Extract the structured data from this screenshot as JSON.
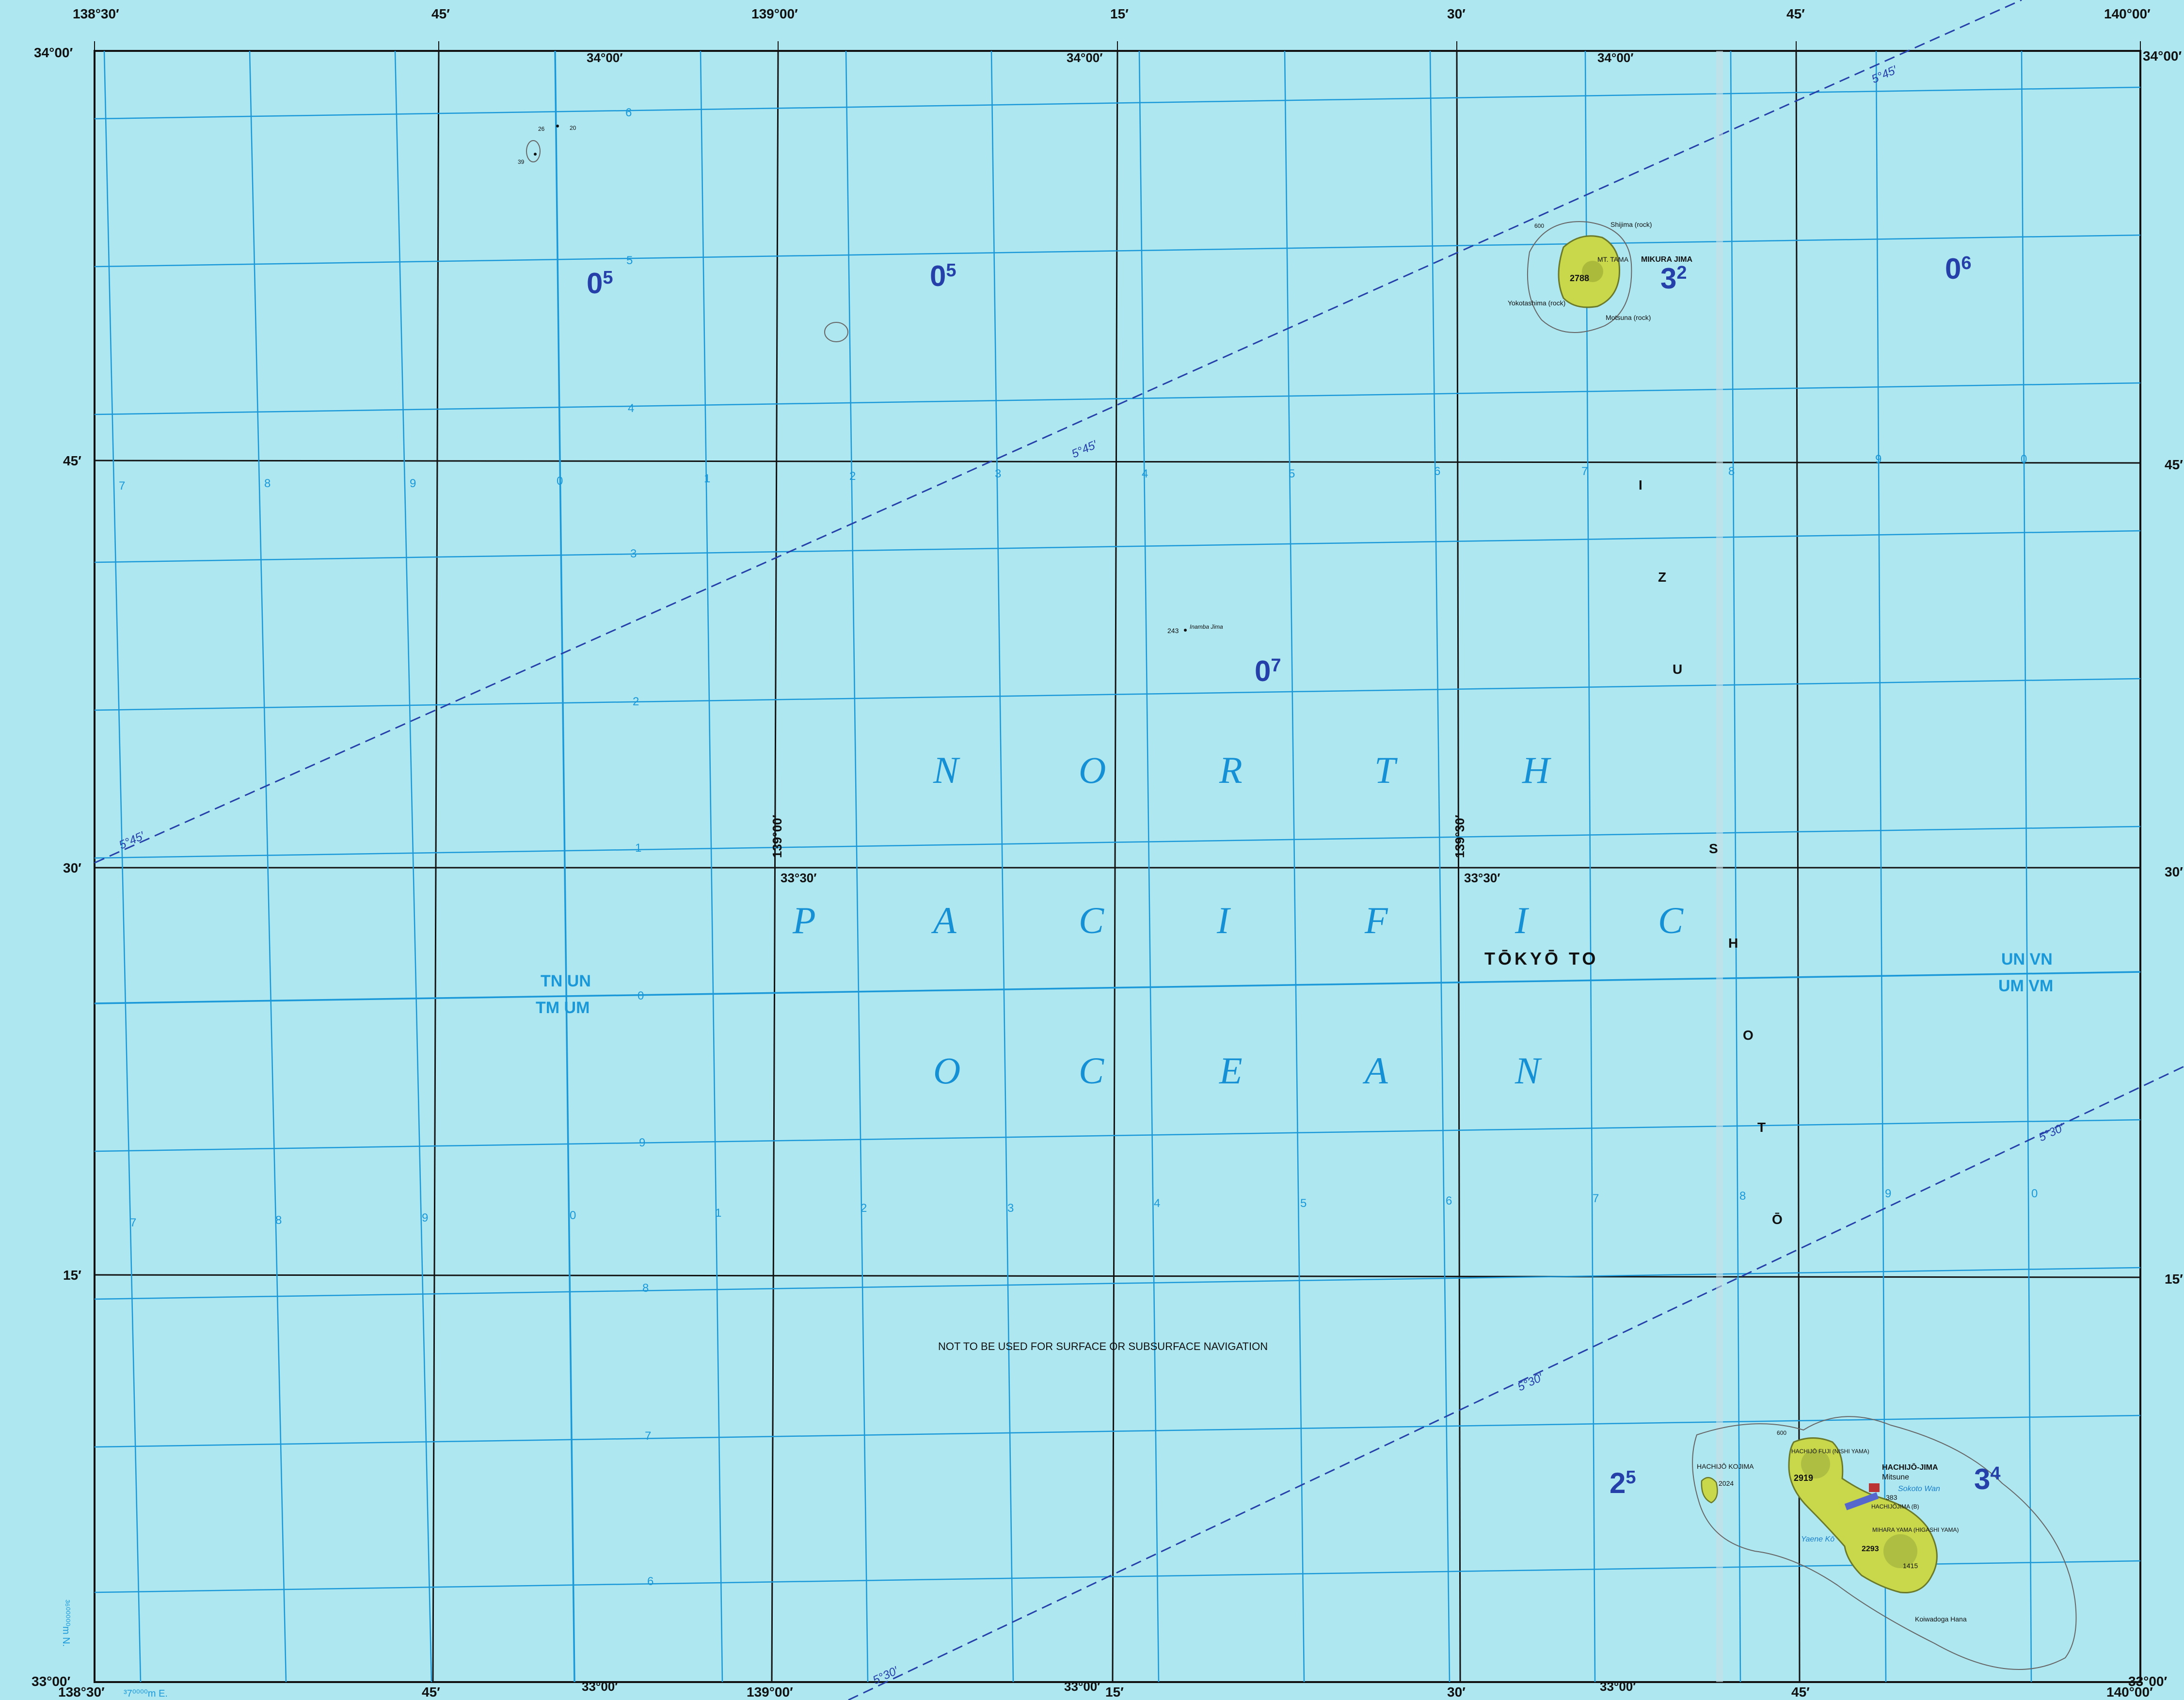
{
  "map": {
    "ocean_name_rows": [
      [
        "N",
        "O",
        "R",
        "T",
        "H"
      ],
      [
        "P",
        "A",
        "C",
        "I",
        "F",
        "I",
        "C"
      ],
      [
        "O",
        "C",
        "E",
        "A",
        "N"
      ]
    ],
    "region_label": "TŌKYŌ  TO",
    "warning": "NOT TO BE USED FOR SURFACE OR SUBSURFACE NAVIGATION",
    "island_group_letters": [
      "I",
      "Z",
      "U",
      "S",
      "H",
      "O",
      "T",
      "Ō"
    ],
    "colors": {
      "water": "#aee7f0",
      "land": "#c8d84a",
      "utm_grid": "#1a98d8",
      "graticule": "#111111",
      "isogonic": "#2540a8"
    }
  },
  "graticule": {
    "top_longitudes": [
      "138°30′",
      "45′",
      "139°00′",
      "15′",
      "30′",
      "45′",
      "140°00′"
    ],
    "bottom_longitudes": [
      "138°30′",
      "45′",
      "139°00′",
      "15′",
      "30′",
      "45′",
      "140°00′"
    ],
    "left_latitudes": [
      "34°00′",
      "45′",
      "30′",
      "15′",
      "33°00′"
    ],
    "right_latitudes": [
      "34°00′",
      "45′",
      "30′",
      "15′",
      "33°00′"
    ],
    "inner_top_lat_labels": [
      "34°00′",
      "34°00′",
      "34°00′"
    ],
    "inner_mid_lat_labels": [
      "33°30′",
      "139°30′",
      "33°30′",
      "139°00′"
    ],
    "inner_bottom_lat_labels": [
      "33°00′",
      "33°00′",
      "33°00′"
    ],
    "bottom_easting_note": "³7⁰⁰⁰⁰m E."
  },
  "utm": {
    "row_numbers": [
      "6",
      "5",
      "4",
      "3",
      "2",
      "1",
      "0",
      "9",
      "8",
      "7",
      "6"
    ],
    "col_numbers_row1": [
      "7",
      "8",
      "9",
      "0",
      "1",
      "2",
      "3",
      "4",
      "5",
      "6",
      "7",
      "8",
      "9",
      "0"
    ],
    "col_numbers_row2": [
      "7",
      "8",
      "9",
      "0",
      "1",
      "2",
      "3",
      "4",
      "5",
      "6",
      "7",
      "8",
      "9",
      "0"
    ],
    "zone_labels_left": {
      "top": "TN UN",
      "bottom": "TM UM"
    },
    "zone_labels_right": {
      "top": "UN VN",
      "bottom": "UM VM"
    },
    "northing_note": "³⁶⁰⁰⁰⁰⁰m N."
  },
  "cells": [
    {
      "num": "0",
      "sup": "5"
    },
    {
      "num": "0",
      "sup": "5"
    },
    {
      "num": "3",
      "sup": "2"
    },
    {
      "num": "0",
      "sup": "6"
    },
    {
      "num": "0",
      "sup": "7"
    },
    {
      "num": "2",
      "sup": "5"
    },
    {
      "num": "3",
      "sup": "4"
    }
  ],
  "isogonic": [
    "5°45′",
    "5°45′",
    "5°45′",
    "5°30′",
    "5°30′",
    "5°30′"
  ],
  "mikura": {
    "name": "MIKURA JIMA",
    "summit": "2788",
    "rock_n": "Shijima (rock)",
    "rock_sw": "Yokotashima (rock)",
    "rock_s": "Motsuna (rock)",
    "peak_label": "MT. TAMA",
    "contour": "600"
  },
  "inamba": {
    "elev": "243",
    "name": "Inamba Jima"
  },
  "small_islets": {
    "a": "26",
    "b": "20",
    "c": "39"
  },
  "hachijo": {
    "name": "HACHIJŌ-JIMA",
    "town": "Mitsune",
    "kojima": "HACHIJŌ KOJIMA",
    "kojima_elev": "2024",
    "fuji": "HACHIJŌ FUJI (NISHI YAMA)",
    "fuji_elev": "2919",
    "higashi": "MIHARA YAMA (HIGASHI YAMA)",
    "higashi_elev": "2293",
    "airport": "HACHIJŌJIMA (B)",
    "elev_383": "383",
    "elev_1415": "1415",
    "bay1": "Sokoto Wan",
    "bay2": "Yaene Kō",
    "cape": "Koiwadoga Hana",
    "contour": "600"
  }
}
